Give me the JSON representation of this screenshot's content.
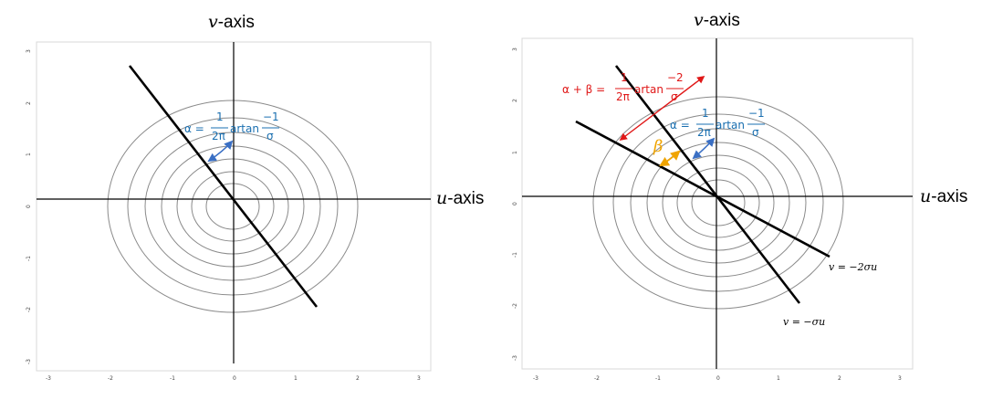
{
  "left_panel": {
    "v_axis": "v",
    "v_axis_suffix": "-axis",
    "u_axis": "u",
    "u_axis_suffix": "-axis",
    "alpha_label": "α =",
    "alpha_num": "1",
    "alpha_den": "2π",
    "alpha_func": "artan",
    "alpha_frac_num": "−1",
    "alpha_frac_den": "σ",
    "x_ticks": [
      "-3",
      "-2",
      "-1",
      "0",
      "1",
      "2",
      "3"
    ],
    "y_ticks": [
      "3",
      "2",
      "1",
      "0",
      "-1",
      "-2",
      "-3"
    ]
  },
  "right_panel": {
    "v_axis": "v",
    "v_axis_suffix": "-axis",
    "u_axis": "u",
    "u_axis_suffix": "-axis",
    "alpha_label": "α =",
    "alpha_num": "1",
    "alpha_den": "2π",
    "alpha_func": "artan",
    "alpha_frac_num": "−1",
    "alpha_frac_den": "σ",
    "sum_label": "α + β =",
    "sum_num": "1",
    "sum_den": "2π",
    "sum_func": "artan",
    "sum_frac_num": "−2",
    "sum_frac_den": "σ",
    "beta_label": "β",
    "line1_label": "v = −2σu",
    "line2_label": "v = −σu",
    "x_ticks": [
      "-3",
      "-2",
      "-1",
      "0",
      "1",
      "2",
      "3"
    ],
    "y_ticks": [
      "3",
      "2",
      "1",
      "0",
      "-1",
      "-2",
      "-3"
    ]
  },
  "colors": {
    "blue": "#1a6fb0",
    "arrow_blue": "#3a6fc4",
    "red": "#e01818",
    "orange": "#f0a400",
    "contour": "#8a8a8a"
  }
}
